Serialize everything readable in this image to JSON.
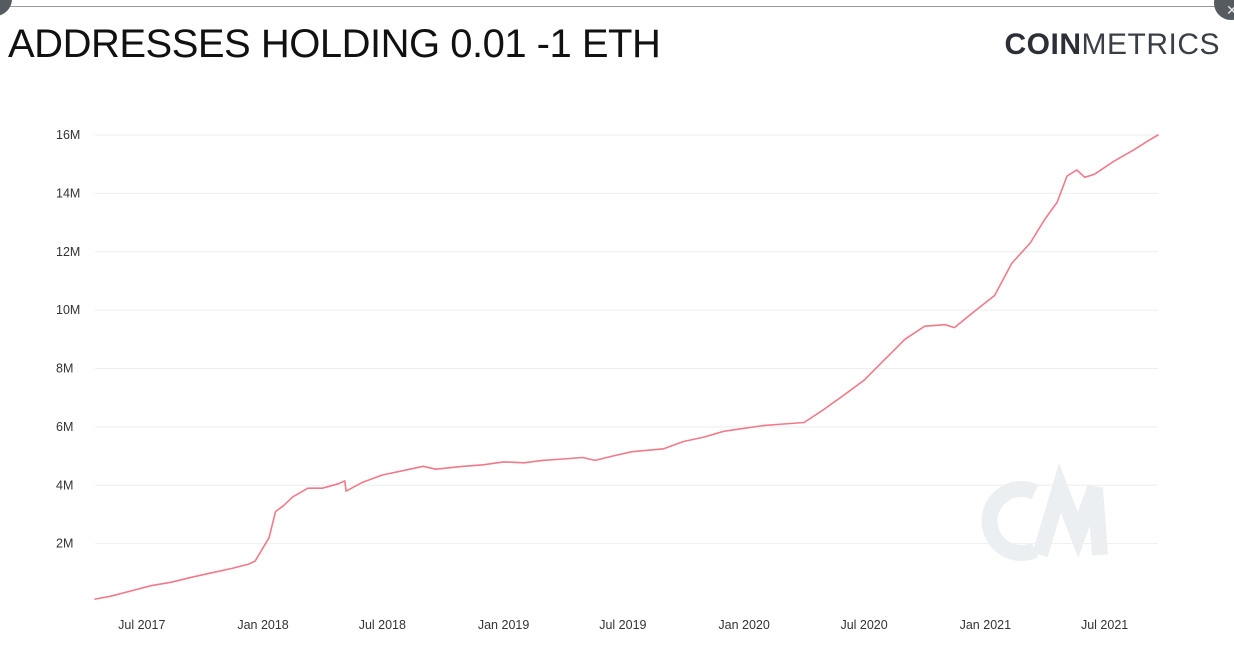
{
  "title": "ADDRESSES HOLDING 0.01 -1 ETH",
  "brand": {
    "bold": "COIN",
    "light": "METRICS",
    "watermark_icon": "cm-watermark-icon"
  },
  "colors": {
    "line": "#f07a8a",
    "grid": "#eeeeee",
    "watermark": "#eceff2"
  },
  "chart_data": {
    "type": "line",
    "title": "ADDRESSES HOLDING 0.01 -1 ETH",
    "xlabel": "",
    "ylabel": "",
    "ylim": [
      0,
      16000000
    ],
    "xlim": [
      "2017-04-21",
      "2021-09-20"
    ],
    "grid": true,
    "legend": "none",
    "y_ticks": [
      {
        "value": 2000000,
        "label": "2M"
      },
      {
        "value": 4000000,
        "label": "4M"
      },
      {
        "value": 6000000,
        "label": "6M"
      },
      {
        "value": 8000000,
        "label": "8M"
      },
      {
        "value": 10000000,
        "label": "10M"
      },
      {
        "value": 12000000,
        "label": "12M"
      },
      {
        "value": 14000000,
        "label": "14M"
      },
      {
        "value": 16000000,
        "label": "16M"
      }
    ],
    "x_ticks": [
      {
        "date": "2017-07-01",
        "label": "Jul 2017"
      },
      {
        "date": "2018-01-01",
        "label": "Jan 2018"
      },
      {
        "date": "2018-07-01",
        "label": "Jul 2018"
      },
      {
        "date": "2019-01-01",
        "label": "Jan 2019"
      },
      {
        "date": "2019-07-01",
        "label": "Jul 2019"
      },
      {
        "date": "2020-01-01",
        "label": "Jan 2020"
      },
      {
        "date": "2020-07-01",
        "label": "Jul 2020"
      },
      {
        "date": "2021-01-01",
        "label": "Jan 2021"
      },
      {
        "date": "2021-07-01",
        "label": "Jul 2021"
      }
    ],
    "series": [
      {
        "color": "#f07a8a",
        "points": [
          [
            "2017-04-21",
            100000
          ],
          [
            "2017-05-15",
            200000
          ],
          [
            "2017-06-15",
            380000
          ],
          [
            "2017-07-15",
            560000
          ],
          [
            "2017-08-15",
            680000
          ],
          [
            "2017-09-15",
            850000
          ],
          [
            "2017-10-15",
            1000000
          ],
          [
            "2017-11-15",
            1150000
          ],
          [
            "2017-12-10",
            1300000
          ],
          [
            "2017-12-20",
            1400000
          ],
          [
            "2018-01-10",
            2200000
          ],
          [
            "2018-01-20",
            3100000
          ],
          [
            "2018-02-01",
            3300000
          ],
          [
            "2018-02-15",
            3600000
          ],
          [
            "2018-03-10",
            3900000
          ],
          [
            "2018-04-01",
            3900000
          ],
          [
            "2018-04-25",
            4050000
          ],
          [
            "2018-05-05",
            4150000
          ],
          [
            "2018-05-07",
            3800000
          ],
          [
            "2018-06-01",
            4100000
          ],
          [
            "2018-07-01",
            4350000
          ],
          [
            "2018-08-01",
            4500000
          ],
          [
            "2018-09-01",
            4650000
          ],
          [
            "2018-09-20",
            4550000
          ],
          [
            "2018-11-01",
            4650000
          ],
          [
            "2018-12-01",
            4700000
          ],
          [
            "2019-01-01",
            4800000
          ],
          [
            "2019-02-01",
            4770000
          ],
          [
            "2019-03-01",
            4850000
          ],
          [
            "2019-04-01",
            4900000
          ],
          [
            "2019-05-01",
            4950000
          ],
          [
            "2019-05-20",
            4850000
          ],
          [
            "2019-06-15",
            5000000
          ],
          [
            "2019-07-15",
            5150000
          ],
          [
            "2019-09-01",
            5250000
          ],
          [
            "2019-10-01",
            5500000
          ],
          [
            "2019-11-01",
            5650000
          ],
          [
            "2019-12-01",
            5850000
          ],
          [
            "2020-01-01",
            5950000
          ],
          [
            "2020-02-01",
            6050000
          ],
          [
            "2020-03-01",
            6100000
          ],
          [
            "2020-04-01",
            6150000
          ],
          [
            "2020-05-01",
            6600000
          ],
          [
            "2020-06-01",
            7100000
          ],
          [
            "2020-07-01",
            7600000
          ],
          [
            "2020-08-01",
            8300000
          ],
          [
            "2020-09-01",
            9000000
          ],
          [
            "2020-10-01",
            9450000
          ],
          [
            "2020-11-01",
            9500000
          ],
          [
            "2020-11-15",
            9400000
          ],
          [
            "2020-12-15",
            9950000
          ],
          [
            "2021-01-15",
            10500000
          ],
          [
            "2021-02-10",
            11600000
          ],
          [
            "2021-03-10",
            12300000
          ],
          [
            "2021-04-01",
            13100000
          ],
          [
            "2021-04-20",
            13700000
          ],
          [
            "2021-05-05",
            14600000
          ],
          [
            "2021-05-20",
            14800000
          ],
          [
            "2021-06-01",
            14550000
          ],
          [
            "2021-06-15",
            14650000
          ],
          [
            "2021-07-15",
            15100000
          ],
          [
            "2021-08-15",
            15500000
          ],
          [
            "2021-09-05",
            15800000
          ],
          [
            "2021-09-20",
            16000000
          ]
        ]
      }
    ]
  }
}
